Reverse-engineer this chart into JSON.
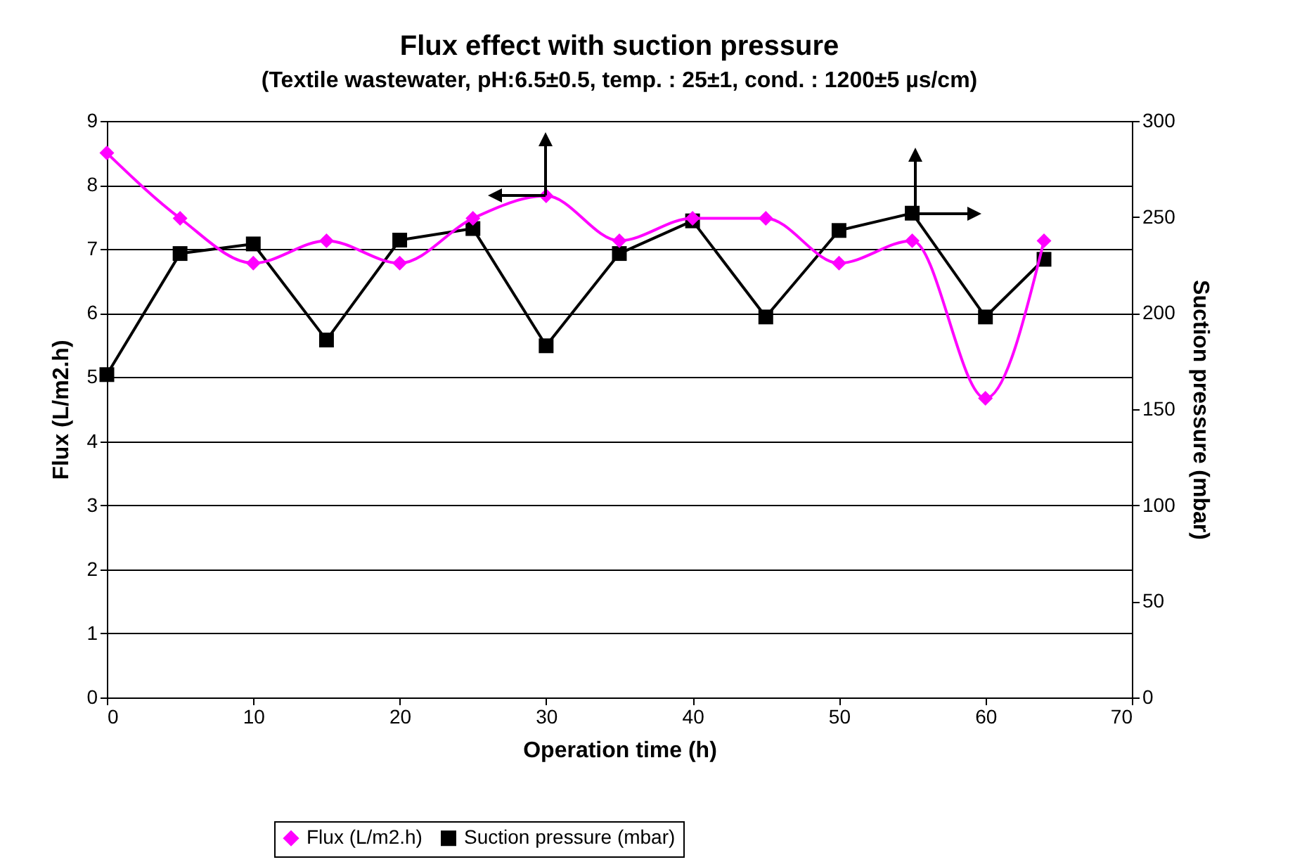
{
  "chart_data": {
    "type": "line",
    "title": "Flux effect with suction pressure",
    "subtitle": "(Textile wastewater, pH:6.5±0.5, temp. : 25±1, cond. : 1200±5 µs/cm)",
    "xlabel": "Operation time (h)",
    "ylabel": "Flux (L/m2.h)",
    "y2label": "Suction pressure (mbar)",
    "x": [
      0,
      5,
      10,
      15,
      20,
      25,
      30,
      35,
      40,
      45,
      50,
      55,
      60,
      64
    ],
    "series": [
      {
        "name": "Flux (L/m2.h)",
        "color": "#ff00ff",
        "marker": "diamond",
        "values": [
          8.5,
          7.48,
          6.78,
          7.13,
          6.78,
          7.48,
          7.83,
          7.13,
          7.48,
          7.48,
          6.78,
          7.13,
          4.67,
          7.13
        ]
      },
      {
        "name": "Suction pressure (mbar)",
        "color": "#000000",
        "marker": "square",
        "axis": "y2",
        "values": [
          168,
          231,
          236,
          186,
          238,
          244,
          183,
          231,
          248,
          198,
          243,
          252,
          198,
          228
        ]
      }
    ],
    "xlim": [
      0,
      70
    ],
    "xticks": [
      0,
      10,
      20,
      30,
      40,
      50,
      60,
      70
    ],
    "ylim": [
      0,
      9
    ],
    "yticks": [
      0,
      1,
      2,
      3,
      4,
      5,
      6,
      7,
      8,
      9
    ],
    "y2lim": [
      0,
      300
    ],
    "y2ticks": [
      0,
      50,
      100,
      150,
      200,
      250,
      300
    ],
    "grid": "y",
    "legend": "bottom"
  }
}
